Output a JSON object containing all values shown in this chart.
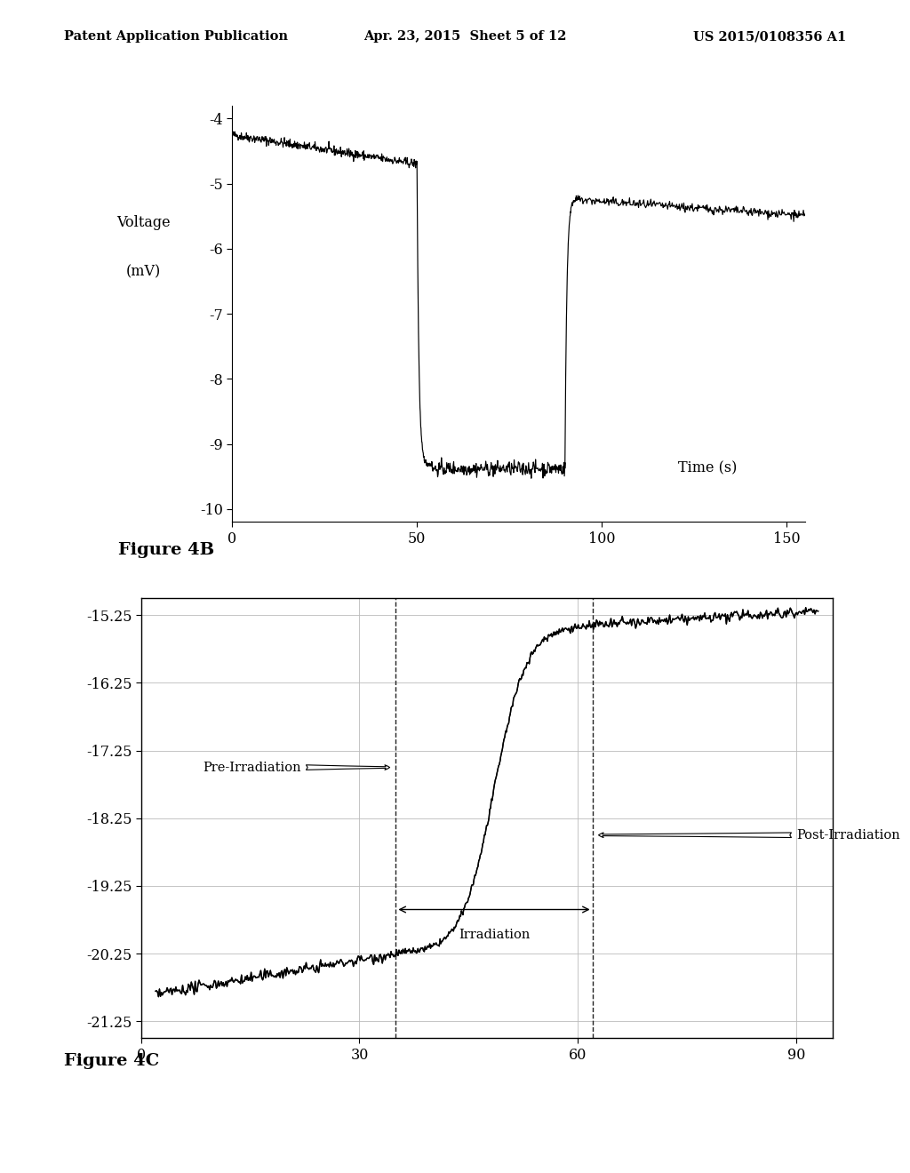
{
  "header_left": "Patent Application Publication",
  "header_mid": "Apr. 23, 2015  Sheet 5 of 12",
  "header_right": "US 2015/0108356 A1",
  "fig4b": {
    "ylabel_line1": "Voltage",
    "ylabel_line2": "(mV)",
    "xlabel": "Time (s)",
    "caption": "Figure 4B",
    "xlim": [
      0,
      155
    ],
    "ylim": [
      -10.2,
      -3.8
    ],
    "yticks": [
      -10,
      -9,
      -8,
      -7,
      -6,
      -5,
      -4
    ],
    "xticks": [
      0,
      50,
      100,
      150
    ]
  },
  "fig4c": {
    "caption": "Figure 4C",
    "xlim": [
      0,
      95
    ],
    "ylim": [
      -21.5,
      -15.0
    ],
    "yticks": [
      -21.25,
      -20.25,
      -19.25,
      -18.25,
      -17.25,
      -16.25,
      -15.25
    ],
    "xticks": [
      0,
      30,
      60,
      90
    ],
    "vline1": 35,
    "vline2": 62,
    "label_pre": "Pre-Irradiation",
    "label_irr": "Irradiation",
    "label_post": "Post-Irradiation"
  },
  "line_color": "#000000",
  "bg_color": "#ffffff"
}
